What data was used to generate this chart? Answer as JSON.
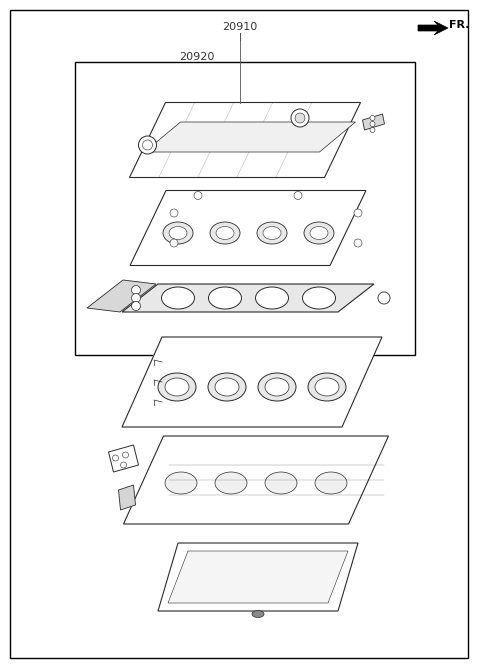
{
  "bg_color": "#ffffff",
  "line_color": "#2a2a2a",
  "label_20910": "20910",
  "label_20920": "20920",
  "label_fr": "FR.",
  "fig_width": 4.8,
  "fig_height": 6.67,
  "dpi": 100
}
